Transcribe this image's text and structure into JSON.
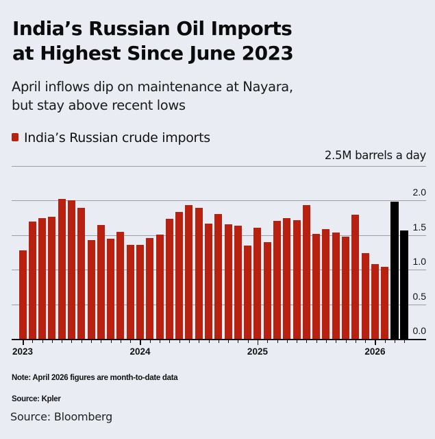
{
  "header": {
    "title_line1": "India’s Russian Oil Imports",
    "title_line2": "at Highest Since June 2023",
    "subtitle_line1": "April inflows dip on maintenance at Nayara,",
    "subtitle_line2": "but stay above recent lows"
  },
  "legend": {
    "label": "India’s Russian crude imports",
    "color": "#B8200F"
  },
  "unit_label": "2.5M barrels a day",
  "footer": {
    "note": "Note: April 2026 figures are month-to-date data",
    "source_primary": "Source: Kpler",
    "source_secondary": "Source: Bloomberg"
  },
  "colors": {
    "background": "#E9ECF3",
    "bar": "#B8200F",
    "highlight_bar": "#000000",
    "gridline": "#9B9EA6"
  },
  "chart_data": {
    "type": "bar",
    "title": "India’s Russian Oil Imports at Highest Since June 2023",
    "subtitle": "April inflows dip on maintenance at Nayara, but stay above recent lows",
    "xlabel": "",
    "ylabel": "M barrels a day",
    "ylim": [
      0,
      2.5
    ],
    "yticks": [
      "0.0",
      "0.5",
      "1.0",
      "1.5",
      "2.0"
    ],
    "top_label": "2.5M barrels a day",
    "xtick_labels": [
      "2023",
      "2024",
      "2025",
      "2026"
    ],
    "grid": true,
    "legend_position": "top-left",
    "categories": [
      "Jan 2023",
      "Feb 2023",
      "Mar 2023",
      "Apr 2023",
      "May 2023",
      "Jun 2023",
      "Jul 2023",
      "Aug 2023",
      "Sep 2023",
      "Oct 2023",
      "Nov 2023",
      "Dec 2023",
      "Jan 2024",
      "Feb 2024",
      "Mar 2024",
      "Apr 2024",
      "May 2024",
      "Jun 2024",
      "Jul 2024",
      "Aug 2024",
      "Sep 2024",
      "Oct 2024",
      "Nov 2024",
      "Dec 2024",
      "Jan 2025",
      "Feb 2025",
      "Mar 2025",
      "Apr 2025",
      "May 2025",
      "Jun 2025",
      "Jul 2025",
      "Aug 2025",
      "Sep 2025",
      "Oct 2025",
      "Nov 2025",
      "Dec 2025",
      "Jan 2026",
      "Feb 2026",
      "Mar 2026",
      "Apr 2026"
    ],
    "series": [
      {
        "name": "India’s Russian crude imports",
        "values": [
          1.28,
          1.7,
          1.75,
          1.77,
          2.02,
          2.0,
          1.89,
          1.43,
          1.65,
          1.45,
          1.55,
          1.36,
          1.36,
          1.46,
          1.51,
          1.74,
          1.84,
          1.93,
          1.89,
          1.67,
          1.81,
          1.66,
          1.64,
          1.35,
          1.61,
          1.4,
          1.71,
          1.75,
          1.72,
          1.93,
          1.52,
          1.59,
          1.54,
          1.48,
          1.8,
          1.24,
          1.08,
          1.04,
          1.98,
          1.57
        ],
        "highlight_indices": [
          38,
          39
        ]
      }
    ],
    "annotations": [
      "Note: April 2026 figures are month-to-date data"
    ]
  }
}
